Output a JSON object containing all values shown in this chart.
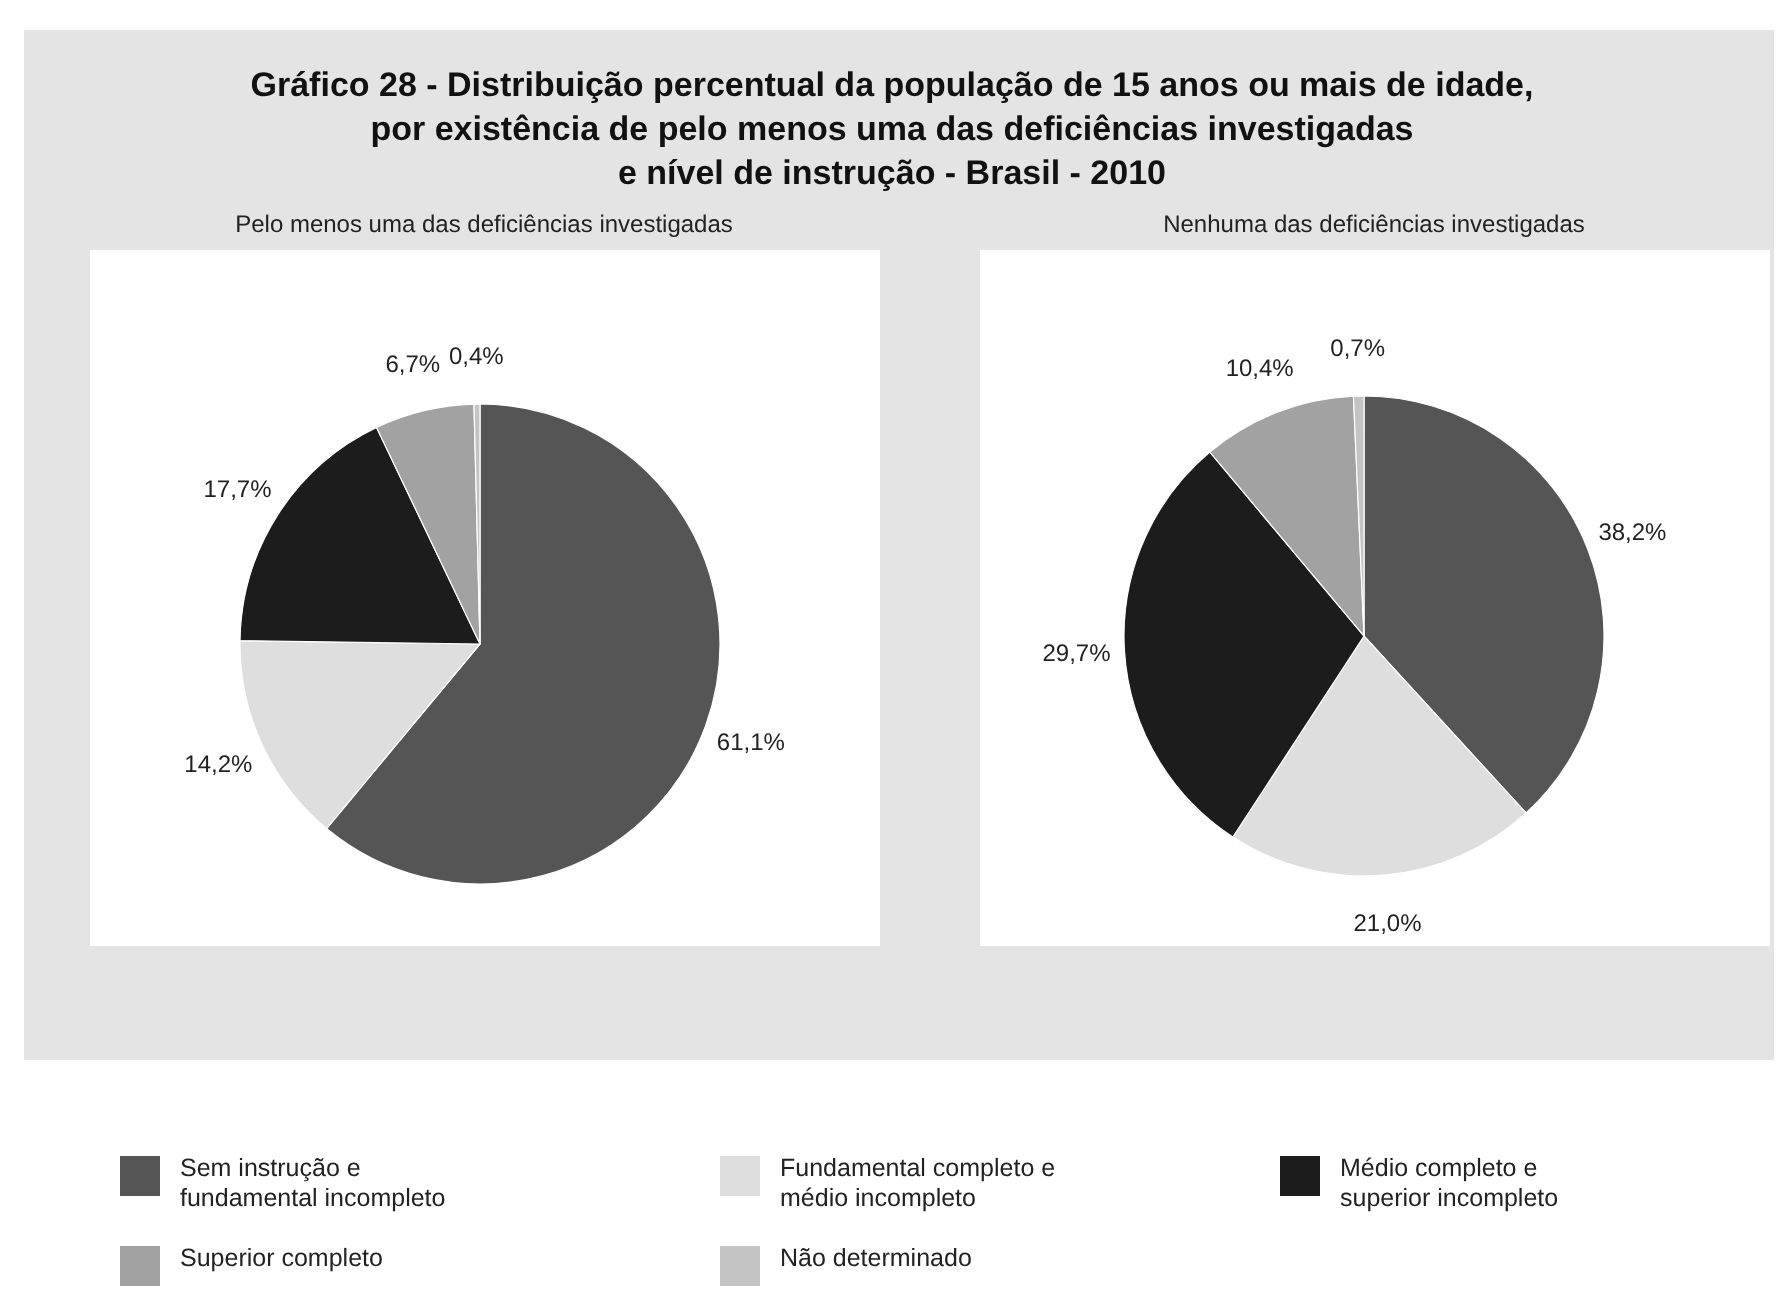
{
  "chart_data": [
    {
      "type": "pie",
      "title": "Gráfico 28 - Distribuição percentual da população de 15 anos ou mais de idade,\npor existência de pelo menos uma das deficiências investigadas\ne nível de instrução - Brasil - 2010",
      "subtitle": "Pelo menos uma das deficiências investigadas",
      "categories": [
        "Sem instrução e\nfundamental incompleto",
        "Fundamental completo e\nmédio incompleto",
        "Médio completo e\nsuperior incompleto",
        "Superior completo",
        "Não determinado"
      ],
      "values": [
        61.1,
        14.2,
        17.7,
        6.7,
        0.4
      ],
      "value_labels": [
        "61,1%",
        "14,2%",
        "17,7%",
        "6,7%",
        "0,4%"
      ],
      "colors": [
        "#555555",
        "#dedede",
        "#1c1c1c",
        "#a2a2a2",
        "#c4c4c4"
      ],
      "legend": "bottom"
    },
    {
      "type": "pie",
      "subtitle": "Nenhuma das deficiências investigadas",
      "values": [
        38.2,
        21.0,
        29.7,
        10.4,
        0.7
      ],
      "value_labels": [
        "38,2%",
        "21,0%",
        "29,7%",
        "10,4%",
        "0,7%"
      ],
      "colors": [
        "#555555",
        "#dedede",
        "#1c1c1c",
        "#a2a2a2",
        "#c4c4c4"
      ]
    }
  ]
}
